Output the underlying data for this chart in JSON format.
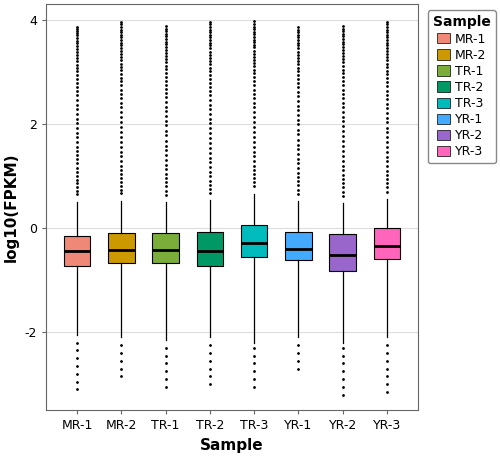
{
  "samples": [
    "MR-1",
    "MR-2",
    "TR-1",
    "TR-2",
    "TR-3",
    "YR-1",
    "YR-2",
    "YR-3"
  ],
  "colors": [
    "#F08878",
    "#CC9900",
    "#7AAD3A",
    "#009966",
    "#00BBBB",
    "#44AAFF",
    "#9966CC",
    "#FF66BB"
  ],
  "box_stats": {
    "MR-1": {
      "q1": -0.72,
      "median": -0.45,
      "q3": -0.15,
      "whislo": -2.05,
      "whishi": 0.5,
      "fliers_high": [
        0.65,
        0.72,
        0.79,
        0.86,
        0.93,
        1.0,
        1.08,
        1.16,
        1.24,
        1.32,
        1.4,
        1.48,
        1.56,
        1.65,
        1.74,
        1.83,
        1.92,
        2.01,
        2.1,
        2.19,
        2.28,
        2.37,
        2.46,
        2.55,
        2.63,
        2.71,
        2.79,
        2.87,
        2.94,
        3.01,
        3.08,
        3.14,
        3.2,
        3.26,
        3.32,
        3.38,
        3.44,
        3.5,
        3.55,
        3.6,
        3.65,
        3.7,
        3.74,
        3.78,
        3.82,
        3.86
      ],
      "fliers_low": [
        -2.2,
        -2.35,
        -2.5,
        -2.65,
        -2.8,
        -2.95,
        -3.1
      ]
    },
    "MR-2": {
      "q1": -0.68,
      "median": -0.42,
      "q3": -0.1,
      "whislo": -2.1,
      "whishi": 0.52,
      "fliers_high": [
        0.67,
        0.74,
        0.81,
        0.88,
        0.96,
        1.04,
        1.12,
        1.2,
        1.29,
        1.38,
        1.47,
        1.56,
        1.66,
        1.75,
        1.85,
        1.95,
        2.04,
        2.14,
        2.23,
        2.32,
        2.41,
        2.5,
        2.58,
        2.66,
        2.74,
        2.82,
        2.89,
        2.96,
        3.03,
        3.1,
        3.16,
        3.22,
        3.28,
        3.34,
        3.4,
        3.46,
        3.51,
        3.56,
        3.61,
        3.66,
        3.71,
        3.76,
        3.81,
        3.86,
        3.91,
        3.96
      ],
      "fliers_low": [
        -2.25,
        -2.4,
        -2.55,
        -2.7,
        -2.85
      ]
    },
    "TR-1": {
      "q1": -0.68,
      "median": -0.42,
      "q3": -0.1,
      "whislo": -2.15,
      "whishi": 0.5,
      "fliers_high": [
        0.64,
        0.72,
        0.8,
        0.88,
        0.96,
        1.04,
        1.13,
        1.22,
        1.31,
        1.4,
        1.49,
        1.58,
        1.68,
        1.78,
        1.87,
        1.97,
        2.06,
        2.15,
        2.24,
        2.33,
        2.42,
        2.51,
        2.59,
        2.67,
        2.75,
        2.83,
        2.91,
        2.98,
        3.05,
        3.12,
        3.18,
        3.24,
        3.3,
        3.36,
        3.42,
        3.48,
        3.53,
        3.58,
        3.63,
        3.68,
        3.73,
        3.78,
        3.83,
        3.88
      ],
      "fliers_low": [
        -2.3,
        -2.45,
        -2.6,
        -2.75,
        -2.9,
        -3.05
      ]
    },
    "TR-2": {
      "q1": -0.72,
      "median": -0.45,
      "q3": -0.08,
      "whislo": -2.1,
      "whishi": 0.53,
      "fliers_high": [
        0.67,
        0.75,
        0.83,
        0.91,
        0.99,
        1.08,
        1.17,
        1.26,
        1.35,
        1.44,
        1.53,
        1.63,
        1.72,
        1.82,
        1.92,
        2.01,
        2.1,
        2.19,
        2.28,
        2.37,
        2.46,
        2.55,
        2.63,
        2.71,
        2.79,
        2.87,
        2.94,
        3.01,
        3.08,
        3.15,
        3.21,
        3.27,
        3.33,
        3.39,
        3.45,
        3.51,
        3.56,
        3.61,
        3.66,
        3.71,
        3.76,
        3.81,
        3.86,
        3.91,
        3.96
      ],
      "fliers_low": [
        -2.25,
        -2.4,
        -2.55,
        -2.7,
        -2.85,
        -3.0
      ]
    },
    "TR-3": {
      "q1": -0.55,
      "median": -0.28,
      "q3": 0.05,
      "whislo": -2.2,
      "whishi": 0.65,
      "fliers_high": [
        0.8,
        0.88,
        0.96,
        1.04,
        1.12,
        1.2,
        1.29,
        1.38,
        1.47,
        1.56,
        1.66,
        1.75,
        1.85,
        1.95,
        2.04,
        2.14,
        2.23,
        2.32,
        2.41,
        2.5,
        2.58,
        2.66,
        2.74,
        2.82,
        2.9,
        2.97,
        3.04,
        3.11,
        3.17,
        3.23,
        3.29,
        3.35,
        3.41,
        3.47,
        3.52,
        3.57,
        3.62,
        3.67,
        3.72,
        3.77,
        3.82,
        3.87,
        3.92,
        3.97
      ],
      "fliers_low": [
        -2.3,
        -2.45,
        -2.6,
        -2.75,
        -2.9,
        -3.05
      ]
    },
    "YR-1": {
      "q1": -0.62,
      "median": -0.4,
      "q3": -0.08,
      "whislo": -2.1,
      "whishi": 0.52,
      "fliers_high": [
        0.66,
        0.74,
        0.82,
        0.9,
        0.98,
        1.06,
        1.15,
        1.24,
        1.33,
        1.42,
        1.51,
        1.6,
        1.7,
        1.8,
        1.89,
        1.99,
        2.08,
        2.17,
        2.26,
        2.35,
        2.44,
        2.53,
        2.62,
        2.7,
        2.78,
        2.86,
        2.94,
        3.01,
        3.08,
        3.15,
        3.21,
        3.27,
        3.33,
        3.39,
        3.45,
        3.51,
        3.56,
        3.61,
        3.66,
        3.71,
        3.76,
        3.81,
        3.86
      ],
      "fliers_low": [
        -2.25,
        -2.4,
        -2.55,
        -2.7
      ]
    },
    "YR-2": {
      "q1": -0.82,
      "median": -0.52,
      "q3": -0.12,
      "whislo": -2.2,
      "whishi": 0.48,
      "fliers_high": [
        0.62,
        0.7,
        0.78,
        0.86,
        0.94,
        1.02,
        1.11,
        1.2,
        1.29,
        1.38,
        1.48,
        1.57,
        1.67,
        1.77,
        1.86,
        1.96,
        2.05,
        2.14,
        2.23,
        2.32,
        2.41,
        2.5,
        2.58,
        2.66,
        2.74,
        2.82,
        2.9,
        2.97,
        3.04,
        3.11,
        3.18,
        3.24,
        3.3,
        3.36,
        3.42,
        3.48,
        3.53,
        3.58,
        3.63,
        3.68,
        3.73,
        3.78,
        3.83,
        3.88
      ],
      "fliers_low": [
        -2.3,
        -2.45,
        -2.6,
        -2.75,
        -2.9,
        -3.05,
        -3.2
      ]
    },
    "YR-3": {
      "q1": -0.6,
      "median": -0.35,
      "q3": -0.0,
      "whislo": -2.1,
      "whishi": 0.56,
      "fliers_high": [
        0.7,
        0.78,
        0.86,
        0.94,
        1.02,
        1.1,
        1.19,
        1.28,
        1.37,
        1.46,
        1.55,
        1.65,
        1.74,
        1.84,
        1.93,
        2.03,
        2.12,
        2.21,
        2.3,
        2.39,
        2.48,
        2.56,
        2.64,
        2.72,
        2.8,
        2.88,
        2.95,
        3.02,
        3.09,
        3.16,
        3.22,
        3.28,
        3.34,
        3.4,
        3.46,
        3.51,
        3.56,
        3.61,
        3.66,
        3.71,
        3.76,
        3.81,
        3.86,
        3.91,
        3.96
      ],
      "fliers_low": [
        -2.25,
        -2.4,
        -2.55,
        -2.7,
        -2.85,
        -3.0,
        -3.15
      ]
    }
  },
  "ylabel": "log10(FPKM)",
  "xlabel": "Sample",
  "ylim": [
    -3.5,
    4.3
  ],
  "yticks": [
    -2,
    0,
    2,
    4
  ],
  "legend_title": "Sample",
  "plot_bg": "#FFFFFF",
  "fig_bg": "#FFFFFF",
  "grid_color": "#FFFFFF",
  "axis_fontsize": 11,
  "tick_fontsize": 9,
  "legend_fontsize": 9,
  "legend_title_fontsize": 10
}
